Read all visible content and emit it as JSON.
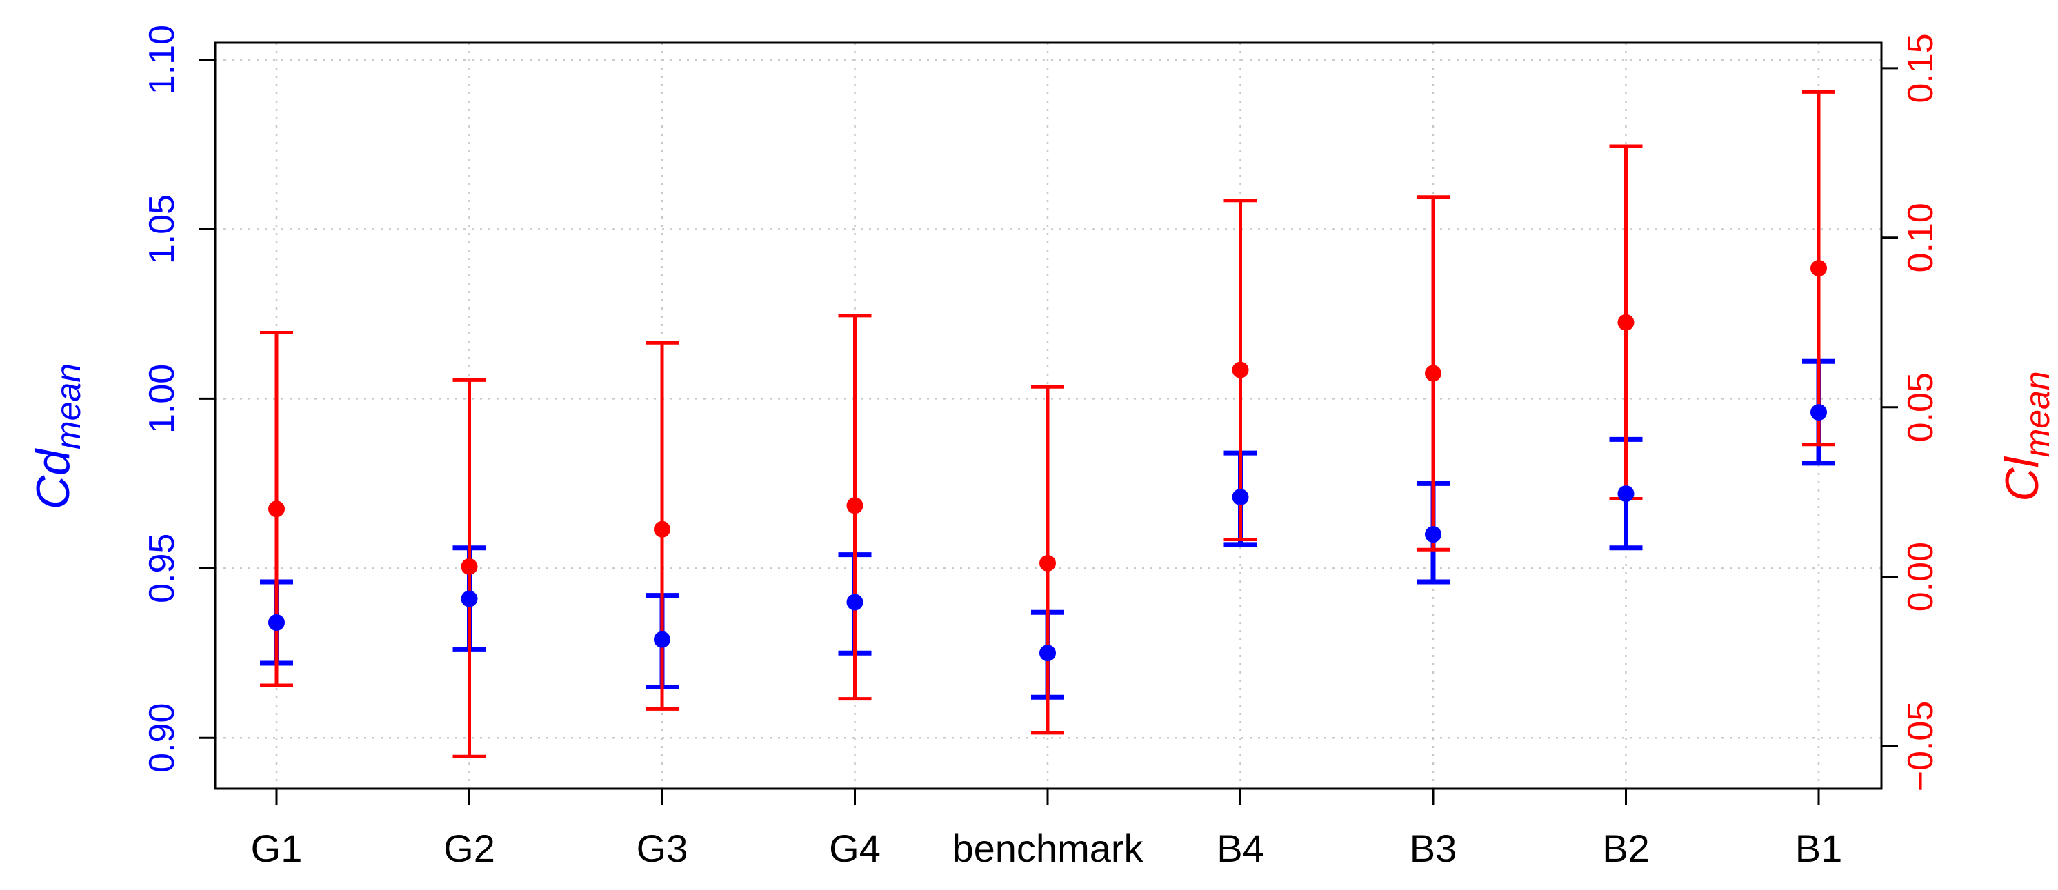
{
  "chart_data": {
    "type": "scatter",
    "categories": [
      "G1",
      "G2",
      "G3",
      "G4",
      "benchmark",
      "B4",
      "B3",
      "B2",
      "B1"
    ],
    "left_axis": {
      "label_main": "Cd",
      "label_sub": "mean",
      "color": "#0000ff",
      "ylim": [
        0.885,
        1.105
      ],
      "ticks": [
        0.9,
        0.95,
        1.0,
        1.05,
        1.1
      ],
      "tick_labels": [
        "0.90",
        "0.95",
        "1.00",
        "1.05",
        "1.10"
      ]
    },
    "right_axis": {
      "label_main": "Cl",
      "label_sub": "mean",
      "color": "#ff0000",
      "ylim": [
        -0.0625,
        0.1575
      ],
      "ticks": [
        -0.05,
        0.0,
        0.05,
        0.1,
        0.15
      ],
      "tick_labels": [
        "−0.05",
        "0.00",
        "0.05",
        "0.10",
        "0.15"
      ]
    },
    "series": [
      {
        "name": "Cd_mean",
        "axis": "left",
        "color": "#0000ff",
        "values": [
          0.934,
          0.941,
          0.929,
          0.94,
          0.925,
          0.971,
          0.96,
          0.972,
          0.996
        ],
        "lower": [
          0.922,
          0.926,
          0.915,
          0.925,
          0.912,
          0.957,
          0.946,
          0.956,
          0.981
        ],
        "upper": [
          0.946,
          0.956,
          0.942,
          0.954,
          0.937,
          0.984,
          0.975,
          0.988,
          1.011
        ]
      },
      {
        "name": "Cl_mean",
        "axis": "right",
        "color": "#ff0000",
        "values": [
          0.02,
          0.003,
          0.014,
          0.021,
          0.004,
          0.061,
          0.06,
          0.075,
          0.091
        ],
        "lower": [
          -0.032,
          -0.053,
          -0.039,
          -0.036,
          -0.046,
          0.011,
          0.008,
          0.023,
          0.039
        ],
        "upper": [
          0.072,
          0.058,
          0.069,
          0.077,
          0.056,
          0.111,
          0.112,
          0.127,
          0.143
        ]
      }
    ],
    "grid": true
  }
}
